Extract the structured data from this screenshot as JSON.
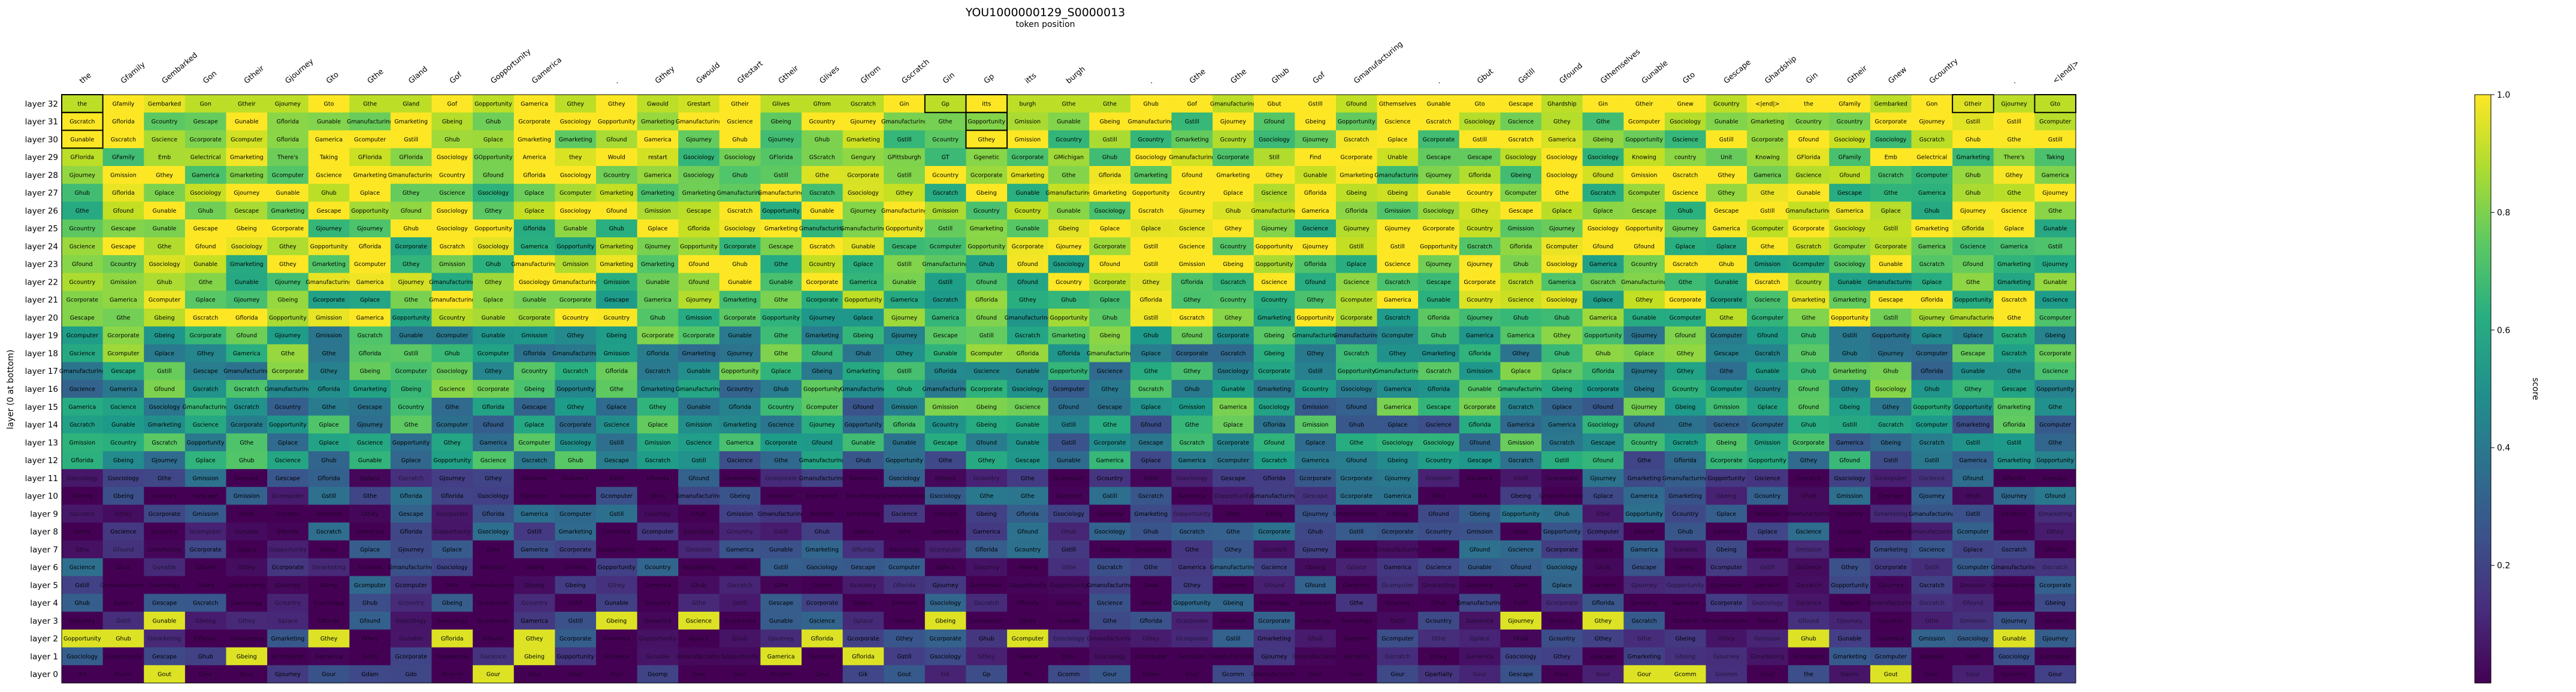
{
  "chart_data": {
    "type": "heatmap",
    "title": "YOU1000000129_S0000013",
    "subtitle": "token position",
    "ylabel": "layer (0 at bottom)",
    "colorbar_label": "score",
    "colorbar_ticks": [
      0.2,
      0.4,
      0.6,
      0.8,
      1.0
    ],
    "colorbar_range": [
      0.0,
      1.0
    ],
    "colormap": "viridis",
    "columns": [
      "the",
      "Gfamily",
      "Gembarked",
      "Gon",
      "Gtheir",
      "Gjourney",
      "Gto",
      "Gthe",
      "Gland",
      "Gof",
      "Gopportunity",
      "Gamerica",
      "",
      ".",
      "Gthey",
      "Gwould",
      "Gfestart",
      "Gtheir",
      "Glives",
      "Gfrom",
      "Gscratch",
      "Gin",
      "Gp",
      "itts",
      "burgh",
      "",
      ".",
      "Gthe",
      "Gthe",
      "Ghub",
      "Gof",
      "Gmanufacturing",
      "",
      ".",
      "Gbut",
      "Gstill",
      "Gfound",
      "Gthemselves",
      "Gunable",
      "Gto",
      "Gescape",
      "Ghardship",
      "Gin",
      "Gtheir",
      "Gnew",
      "Gcountry",
      "",
      ".",
      "<|end|>"
    ],
    "rows": [
      "layer 32",
      "layer 31",
      "layer 30",
      "layer 29",
      "layer 28",
      "layer 27",
      "layer 26",
      "layer 25",
      "layer 24",
      "layer 23",
      "layer 22",
      "layer 21",
      "layer 20",
      "layer 19",
      "layer 18",
      "layer 17",
      "layer 16",
      "layer 15",
      "layer 14",
      "layer 13",
      "layer 12",
      "layer 11",
      "layer 10",
      "layer 9",
      "layer 8",
      "layer 7",
      "layer 6",
      "layer 5",
      "layer 4",
      "layer 3",
      "layer 2",
      "layer 1",
      "layer 0"
    ],
    "top_row_tokens": [
      "the",
      "Gfamily",
      "Gembarked",
      "Gon",
      "Gtheir",
      "Gjourney",
      "Gto",
      "Gthe",
      "Gland",
      "Gof",
      "Gopportunity",
      "Gamerica",
      "Gthey",
      "Gthey",
      "Gwould",
      "Grestart",
      "Gtheir",
      "Glives",
      "Gfrom",
      "Gscratch",
      "Gin",
      "Gp",
      "itts",
      "burgh",
      "Gthe",
      "Gthe",
      "Ghub",
      "Gof",
      "Gmanufacturing",
      "Gbut",
      "Gstill",
      "Gfound",
      "Gthemselves",
      "Gunable",
      "Gto",
      "Gescape",
      "Ghardship",
      "Gin",
      "Gtheir",
      "Gnew",
      "Gcountry",
      "<|end|>"
    ],
    "sample_cells": [
      {
        "row": "layer 29",
        "tokens": [
          "GFlorida",
          "GFamily",
          "Emb",
          "Gelectrical",
          "Gmarketing",
          "There's",
          "Taking",
          "GFlorida",
          "GFlorida",
          "Gsociology",
          "GOpportunity",
          "America",
          "they",
          "Would",
          "restart",
          "Gsociology",
          "Gsociology",
          "GFlorida",
          "GScratch",
          "Gengury",
          "GPittsburgh",
          "GT",
          "Ggenetic",
          "Gcorporate",
          "GMichigan",
          "Ghub",
          "Gsociology",
          "Gmanufacturing",
          "Gcorporate",
          "Still",
          "Find",
          "Gcorporate",
          "Unable",
          "Gescape",
          "Gescape",
          "Gsociology",
          "Gsociology",
          "Gsociology",
          "Knowing",
          "country",
          "Unit",
          "Knowing"
        ]
      },
      {
        "row": "layer 0",
        "tokens": [
          "the",
          "Gsomi",
          "Gout",
          "Gour",
          "Gour",
          "Gjourney",
          "Gour",
          "Gdam",
          "Gdo",
          "Gcomm",
          "Gour",
          "Gour",
          "Gour",
          "Gour",
          "Gsomp",
          "Grev",
          "Gour",
          "Gcomm",
          "Gour",
          "Gik",
          "Gout",
          "Gik",
          "Gp",
          "itts",
          "Gcomm",
          "Gour",
          "Gdam",
          "Gour",
          "Gcomm",
          "Gmanufacturing",
          "Gour",
          "Gour",
          "Gour",
          "Gpartially",
          "Gour",
          "Gescape",
          "Gour",
          "Gour",
          "Gour",
          "Gcomm",
          "Gcomm",
          "Gour"
        ]
      }
    ]
  }
}
